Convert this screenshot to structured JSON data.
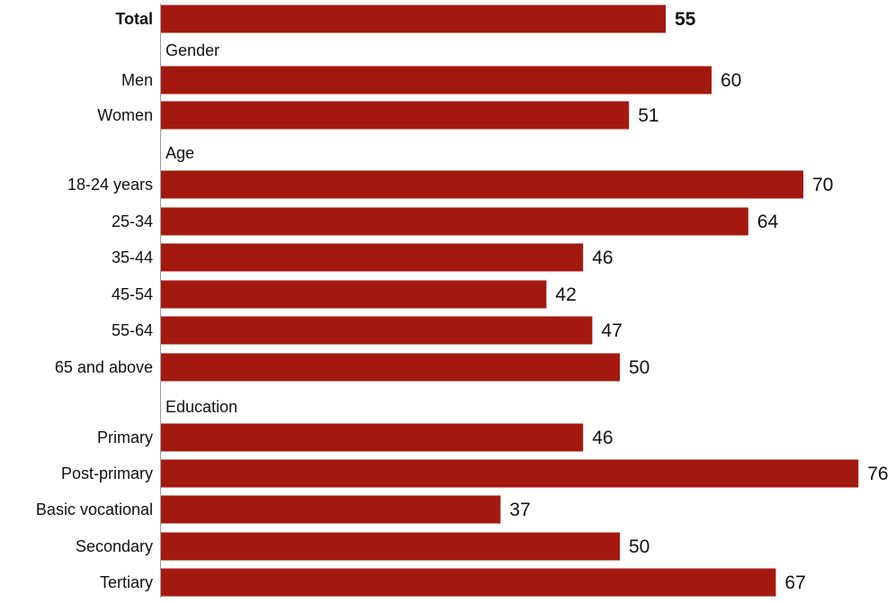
{
  "colors": {
    "bar": "#a3190f",
    "text": "#111111",
    "axis": "#999999"
  },
  "chart_data": {
    "type": "bar",
    "orientation": "horizontal",
    "xlim": [
      0,
      76
    ],
    "grid": false,
    "rows": [
      {
        "kind": "bar",
        "label": "Total",
        "value": 55,
        "bold": true
      },
      {
        "kind": "group",
        "label": "Gender"
      },
      {
        "kind": "bar",
        "label": "Men",
        "value": 60
      },
      {
        "kind": "bar",
        "label": "Women",
        "value": 51
      },
      {
        "kind": "group",
        "label": "Age"
      },
      {
        "kind": "bar",
        "label": "18-24 years",
        "value": 70
      },
      {
        "kind": "bar",
        "label": "25-34",
        "value": 64
      },
      {
        "kind": "bar",
        "label": "35-44",
        "value": 46
      },
      {
        "kind": "bar",
        "label": "45-54",
        "value": 42
      },
      {
        "kind": "bar",
        "label": "55-64",
        "value": 47
      },
      {
        "kind": "bar",
        "label": "65 and above",
        "value": 50
      },
      {
        "kind": "group",
        "label": "Education"
      },
      {
        "kind": "bar",
        "label": "Primary",
        "value": 46
      },
      {
        "kind": "bar",
        "label": "Post-primary",
        "value": 76
      },
      {
        "kind": "bar",
        "label": "Basic vocational",
        "value": 37
      },
      {
        "kind": "bar",
        "label": "Secondary",
        "value": 50
      },
      {
        "kind": "bar",
        "label": "Tertiary",
        "value": 67
      }
    ]
  }
}
